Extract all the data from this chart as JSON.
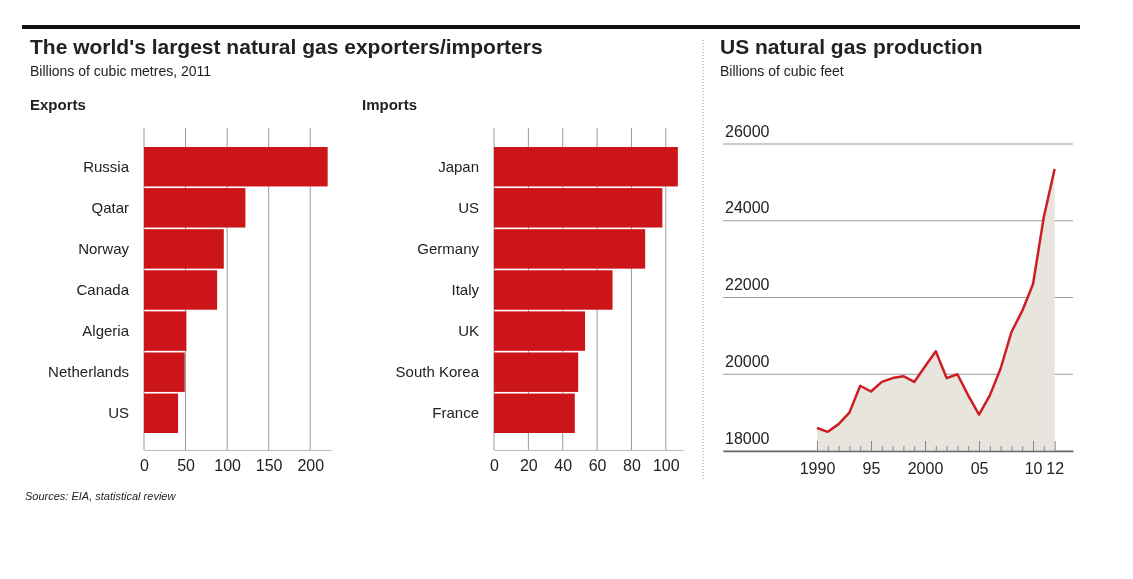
{
  "chart_data": [
    {
      "type": "bar",
      "orientation": "horizontal",
      "title": "The world's largest natural gas exporters/importers",
      "subtitle": "Billions of cubic metres, 2011",
      "annotations": [
        "Exports",
        "Sources: EIA, statistical review"
      ],
      "categories": [
        "Russia",
        "Qatar",
        "Norway",
        "Canada",
        "Algeria",
        "Netherlands",
        "US"
      ],
      "values": [
        221,
        122,
        96,
        88,
        51,
        49,
        41
      ],
      "color": "#cc1518",
      "xlim": [
        0,
        225
      ],
      "xticks": [
        0,
        50,
        100,
        150,
        200
      ],
      "grid": "x"
    },
    {
      "type": "bar",
      "orientation": "horizontal",
      "title": "Imports",
      "categories": [
        "Japan",
        "US",
        "Germany",
        "Italy",
        "UK",
        "South Korea",
        "France"
      ],
      "values": [
        107,
        98,
        88,
        69,
        53,
        49,
        47
      ],
      "color": "#cc1518",
      "xlim": [
        0,
        110
      ],
      "xticks": [
        0,
        20,
        40,
        60,
        80,
        100
      ],
      "grid": "x"
    },
    {
      "type": "area",
      "title": "US natural gas production",
      "subtitle": "Billions of cubic feet",
      "x": [
        1990,
        1991,
        1992,
        1993,
        1994,
        1995,
        1996,
        1997,
        1998,
        1999,
        2000,
        2001,
        2002,
        2003,
        2004,
        2005,
        2006,
        2007,
        2008,
        2009,
        2010,
        2011,
        2012
      ],
      "series": [
        {
          "type": "area",
          "color": "#cc1f24",
          "values": [
            18600,
            18500,
            18700,
            19000,
            19700,
            19550,
            19800,
            19900,
            19950,
            19800,
            20200,
            20600,
            19900,
            20000,
            19450,
            18950,
            19450,
            20150,
            21100,
            21650,
            22350,
            24100,
            25350
          ]
        }
      ],
      "xlim": [
        1981.3,
        2013.7
      ],
      "ylim": [
        18000,
        26000
      ],
      "yticks": [
        18000,
        20000,
        22000,
        24000,
        26000
      ],
      "xticks": [
        1990,
        {
          "value": 1991,
          "label": null
        },
        {
          "value": 1992,
          "label": null
        },
        {
          "value": 1993,
          "label": null
        },
        {
          "value": 1994,
          "label": null
        },
        {
          "value": 1995,
          "label": "95"
        },
        {
          "value": 1996,
          "label": null
        },
        {
          "value": 1997,
          "label": null
        },
        {
          "value": 1998,
          "label": null
        },
        {
          "value": 1999,
          "label": null
        },
        2000,
        {
          "value": 2001,
          "label": null
        },
        {
          "value": 2002,
          "label": null
        },
        {
          "value": 2003,
          "label": null
        },
        {
          "value": 2004,
          "label": null
        },
        {
          "value": 2005,
          "label": "05"
        },
        {
          "value": 2006,
          "label": null
        },
        {
          "value": 2007,
          "label": null
        },
        {
          "value": 2008,
          "label": null
        },
        {
          "value": 2009,
          "label": null
        },
        {
          "value": 2010,
          "label": "10"
        },
        {
          "value": 2011,
          "label": null
        },
        {
          "value": 2012,
          "label": "12"
        }
      ],
      "grid": "y"
    }
  ]
}
